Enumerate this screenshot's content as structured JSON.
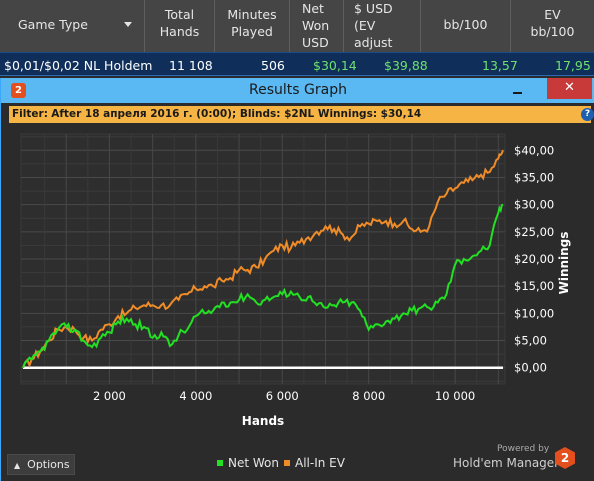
{
  "stats_table": {
    "headers": {
      "game_type": "Game Type",
      "total_hands": [
        "Total",
        "Hands"
      ],
      "minutes_played": [
        "Minutes",
        "Played"
      ],
      "net_won": [
        "Net",
        "Won",
        "USD"
      ],
      "ev_adjust": [
        "$ USD",
        "(EV",
        "adjust"
      ],
      "bb100": "bb/100",
      "ev_bb100": [
        "EV",
        "bb/100"
      ]
    },
    "row": {
      "game_type": "$0,01/$0,02 NL Holdem",
      "total_hands": "11 108",
      "minutes_played": "506",
      "net_won": "$30,14",
      "ev_adjust": "$39,88",
      "bb100": "13,57",
      "ev_bb100": "17,95"
    }
  },
  "window": {
    "icon": "2",
    "title": "Results Graph",
    "close": "✕"
  },
  "filter": {
    "label": "Filter:",
    "text": "After 18 апреля 2016 г. (0:00); Blinds: $2NL Winnings: $30,14",
    "help": "?"
  },
  "footer": {
    "options_label": "Options",
    "powered_by": "Powered by",
    "brand": "Hold'em Manager",
    "brand_icon": "2"
  },
  "colors": {
    "net_won": "#22e022",
    "all_in_ev": "#f08c28",
    "zero_line": "#ffffff",
    "accent": "#5ab8f2"
  },
  "chart_data": {
    "type": "line",
    "xlabel": "Hands",
    "ylabel": "Winnings",
    "xlim": [
      0,
      11108
    ],
    "ylim": [
      -3,
      43
    ],
    "x_ticks": [
      {
        "v": 2000,
        "label": "2 000"
      },
      {
        "v": 4000,
        "label": "4 000"
      },
      {
        "v": 6000,
        "label": "6 000"
      },
      {
        "v": 8000,
        "label": "8 000"
      },
      {
        "v": 10000,
        "label": "10 000"
      }
    ],
    "y_ticks": [
      {
        "v": 0,
        "label": "$0,00"
      },
      {
        "v": 5,
        "label": "$5,00"
      },
      {
        "v": 10,
        "label": "$10,00"
      },
      {
        "v": 15,
        "label": "$15,00"
      },
      {
        "v": 20,
        "label": "$20,00"
      },
      {
        "v": 25,
        "label": "$25,00"
      },
      {
        "v": 30,
        "label": "$30,00"
      },
      {
        "v": 35,
        "label": "$35,00"
      },
      {
        "v": 40,
        "label": "$40,00"
      }
    ],
    "grid": true,
    "legend_position": "bottom-center",
    "series": [
      {
        "name": "Net Won",
        "x": [
          0,
          200,
          400,
          600,
          800,
          1000,
          1200,
          1400,
          1600,
          1800,
          2000,
          2200,
          2400,
          2600,
          2800,
          3000,
          3200,
          3400,
          3600,
          3800,
          4000,
          4200,
          4400,
          4600,
          4800,
          5000,
          5200,
          5400,
          5600,
          5800,
          6000,
          6200,
          6400,
          6600,
          6800,
          7000,
          7200,
          7400,
          7600,
          7800,
          8000,
          8200,
          8400,
          8600,
          8800,
          9000,
          9200,
          9400,
          9600,
          9800,
          10000,
          10200,
          10400,
          10600,
          10800,
          11000,
          11108
        ],
        "y": [
          0,
          1.5,
          3,
          5,
          7,
          7.5,
          7,
          5,
          3.8,
          5.5,
          6.5,
          8.5,
          9,
          8,
          7.5,
          5.5,
          6.5,
          4,
          6,
          7,
          9.5,
          10,
          10.5,
          12,
          12,
          12.5,
          13.5,
          12,
          12.5,
          13,
          13.5,
          14,
          13,
          13,
          11.5,
          11,
          11.5,
          12,
          12,
          10.5,
          7,
          8,
          8.5,
          9,
          10,
          10.5,
          11,
          11,
          12,
          13.5,
          19,
          20,
          20.5,
          21.5,
          22.5,
          28.5,
          30
        ]
      },
      {
        "name": "All-In EV",
        "x": [
          0,
          200,
          400,
          600,
          800,
          1000,
          1200,
          1400,
          1600,
          1800,
          2000,
          2200,
          2400,
          2600,
          2800,
          3000,
          3200,
          3400,
          3600,
          3800,
          4000,
          4200,
          4400,
          4600,
          4800,
          5000,
          5200,
          5400,
          5600,
          5800,
          6000,
          6200,
          6400,
          6600,
          6800,
          7000,
          7200,
          7400,
          7600,
          7800,
          8000,
          8200,
          8400,
          8600,
          8800,
          9000,
          9200,
          9400,
          9600,
          9800,
          10000,
          10200,
          10400,
          10600,
          10800,
          11000,
          11108
        ],
        "y": [
          0,
          1.5,
          3,
          5,
          7,
          7.5,
          7,
          5.5,
          5,
          7,
          8,
          9.5,
          10,
          11,
          11.5,
          11.5,
          11.5,
          11.5,
          12.5,
          13.5,
          14.5,
          15,
          15,
          16,
          16.5,
          18,
          18,
          18.5,
          20,
          21.5,
          22.5,
          22,
          23,
          24,
          25,
          26,
          25.5,
          24.5,
          24,
          26,
          26.5,
          27,
          27,
          26.5,
          27,
          25.5,
          25,
          26,
          30.5,
          32,
          33,
          34,
          34.5,
          35.5,
          36,
          38.5,
          40
        ]
      }
    ]
  }
}
